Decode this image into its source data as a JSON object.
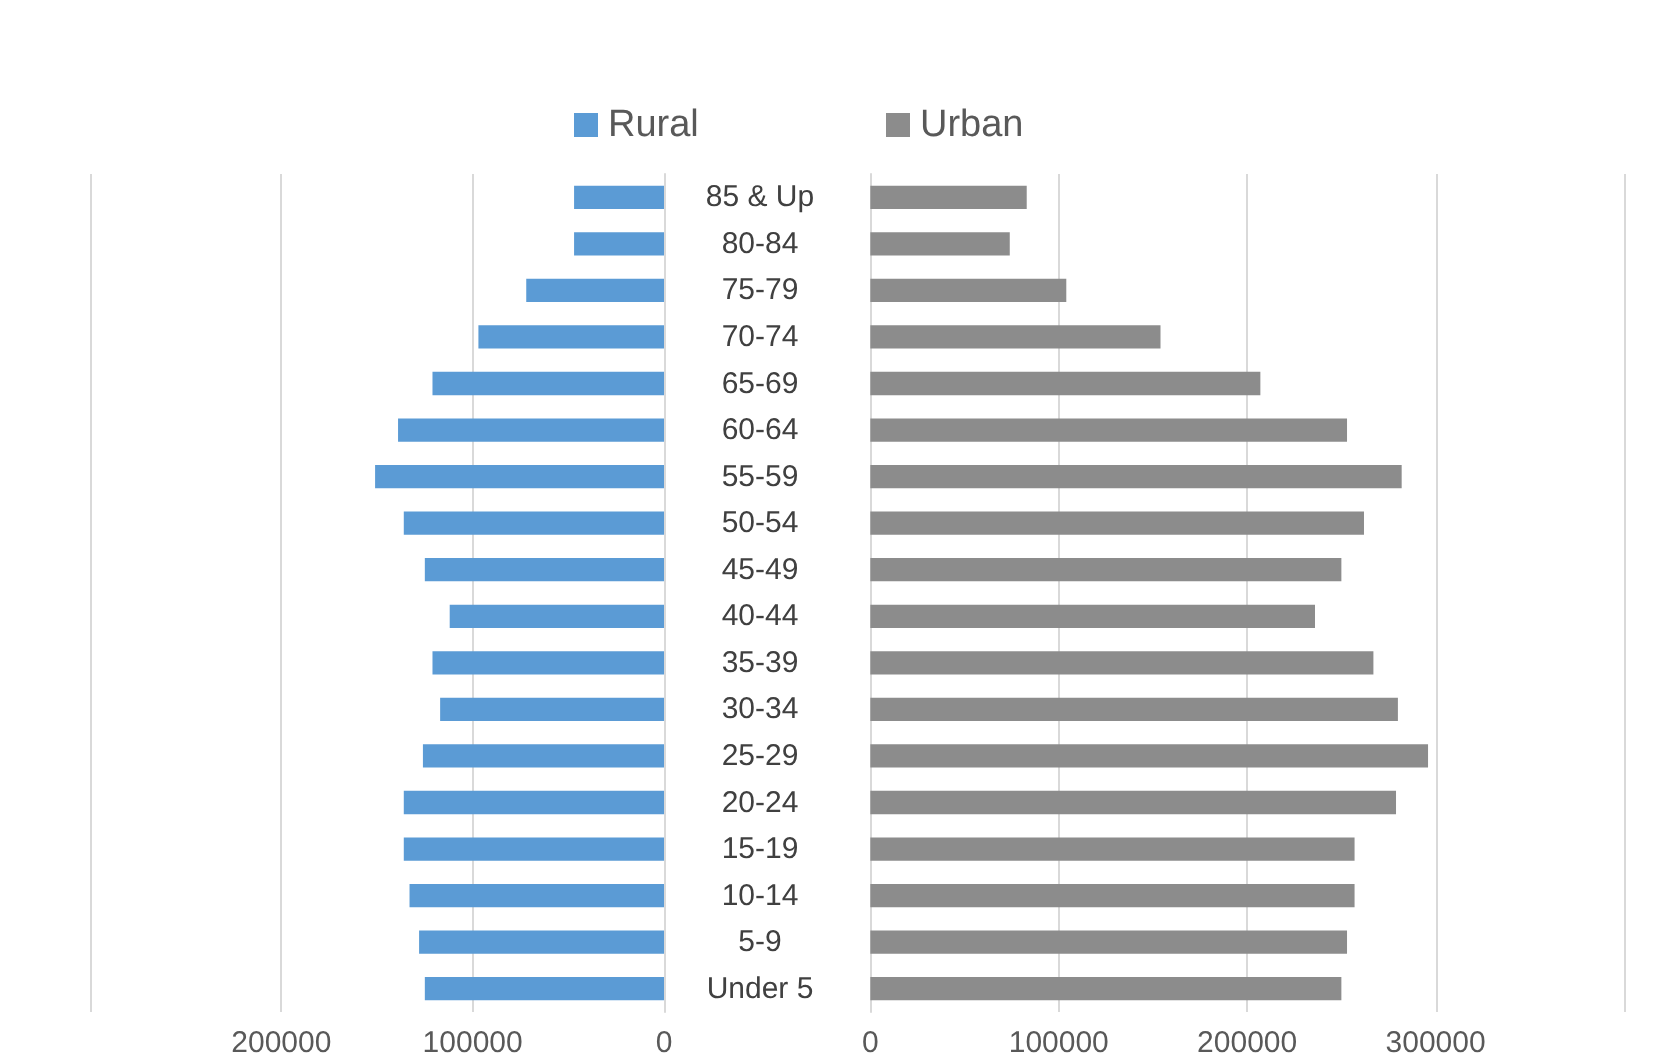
{
  "chart_data": [
    {
      "type": "bar",
      "orientation": "horizontal",
      "categories": [
        "85 & Up",
        "80-84",
        "75-79",
        "70-74",
        "65-69",
        "60-64",
        "55-59",
        "50-54",
        "45-49",
        "40-44",
        "35-39",
        "30-34",
        "25-29",
        "20-24",
        "15-19",
        "10-14",
        "5-9",
        "Under 5"
      ],
      "series": [
        {
          "name": "Rural",
          "color": "#5b9bd5",
          "values": [
            47000,
            47000,
            72000,
            97000,
            121000,
            139000,
            151000,
            136000,
            125000,
            112000,
            121000,
            117000,
            126000,
            136000,
            136000,
            133000,
            128000,
            125000
          ]
        }
      ],
      "xlim": [
        300000,
        0
      ],
      "xticks": [
        {
          "value": 300000,
          "label": null
        },
        200000,
        100000,
        0
      ],
      "grid": "x",
      "legend": "top"
    },
    {
      "type": "bar",
      "orientation": "horizontal",
      "categories": [
        null,
        null,
        null,
        null,
        null,
        null,
        null,
        null,
        null,
        null,
        null,
        null,
        null,
        null,
        null,
        null,
        null,
        null
      ],
      "series": [
        {
          "name": "Urban",
          "color": "#8c8c8c",
          "values": [
            83000,
            74000,
            104000,
            154000,
            207000,
            253000,
            282000,
            262000,
            250000,
            236000,
            267000,
            280000,
            296000,
            279000,
            257000,
            257000,
            253000,
            250000
          ]
        }
      ],
      "xlim": [
        0,
        400000
      ],
      "xticks": [
        0,
        100000,
        200000,
        300000,
        {
          "value": 400000,
          "label": null
        }
      ],
      "grid": "x",
      "legend": "top",
      "tick_labels": "x"
    }
  ]
}
